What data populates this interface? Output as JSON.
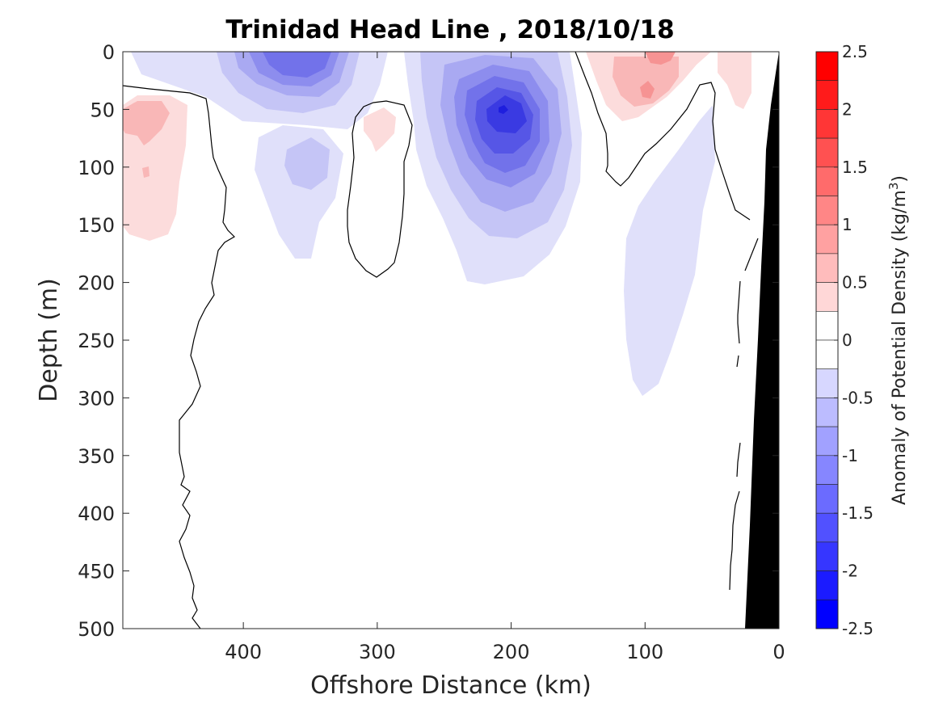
{
  "chart_data": {
    "type": "heatmap",
    "title": "Trinidad Head Line , 2018/10/18",
    "xlabel": "Offshore Distance (km)",
    "ylabel": "Depth (m)",
    "xlim": [
      490,
      0
    ],
    "ylim": [
      0,
      500
    ],
    "x_ticks": [
      400,
      300,
      200,
      100,
      0
    ],
    "y_ticks": [
      0,
      50,
      100,
      150,
      200,
      250,
      300,
      350,
      400,
      450,
      500
    ],
    "y_reversed": true,
    "colorbar": {
      "label_prefix": "Anomaly of Potential Density (kg/m",
      "label_sup": "3",
      "label_suffix": ")",
      "ticks": [
        2.5,
        2,
        1.5,
        1,
        0.5,
        0,
        -0.5,
        -1,
        -1.5,
        -2,
        -2.5
      ],
      "tick_labels": [
        "2.5",
        "2",
        "1.5",
        "1",
        "0.5",
        "0",
        "-0.5",
        "-1",
        "-1.5",
        "-2",
        "-2.5"
      ],
      "levels": [
        2.5,
        2.25,
        2,
        1.75,
        1.5,
        1.25,
        1,
        0.75,
        0.5,
        0.25,
        0,
        -0.25,
        -0.5,
        -0.75,
        -1,
        -1.25,
        -1.5,
        -1.75,
        -2,
        -2.25,
        -2.5
      ],
      "colormap": "blue-white-red"
    },
    "features": [
      {
        "kind": "negative-anomaly",
        "center_km": 355,
        "center_depth_m": 20,
        "min_value": -1.5
      },
      {
        "kind": "negative-anomaly",
        "center_km": 195,
        "center_depth_m": 55,
        "min_value": -2.0
      },
      {
        "kind": "negative-anomaly",
        "center_km": 100,
        "center_depth_m": 200,
        "min_value": -0.5
      },
      {
        "kind": "positive-anomaly",
        "center_km": 470,
        "center_depth_m": 75,
        "max_value": 0.75
      },
      {
        "kind": "positive-anomaly",
        "center_km": 295,
        "center_depth_m": 65,
        "max_value": 0.75
      },
      {
        "kind": "positive-anomaly",
        "center_km": 95,
        "center_depth_m": 25,
        "max_value": 1.0
      },
      {
        "kind": "positive-anomaly",
        "center_km": 35,
        "center_depth_m": 20,
        "max_value": 0.75
      }
    ],
    "bathymetry_color": "#000000"
  }
}
